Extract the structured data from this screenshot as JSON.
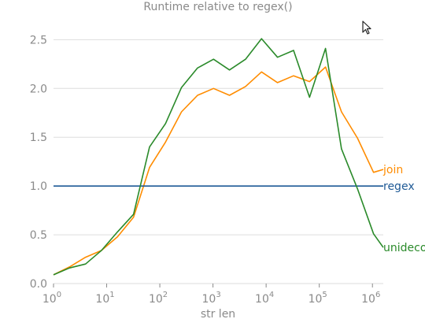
{
  "chart_data": {
    "type": "line",
    "title": "Runtime relative to regex()",
    "xlabel": "str len",
    "ylabel": "",
    "xscale": "log",
    "xlim": [
      1,
      1600000
    ],
    "ylim": [
      0,
      2.6
    ],
    "grid": "horizontal",
    "legend": "inline labels at line ends",
    "xticks": [
      {
        "value": 1,
        "base": "10",
        "exp": "0"
      },
      {
        "value": 10,
        "base": "10",
        "exp": "1"
      },
      {
        "value": 100,
        "base": "10",
        "exp": "2"
      },
      {
        "value": 1000,
        "base": "10",
        "exp": "3"
      },
      {
        "value": 10000,
        "base": "10",
        "exp": "4"
      },
      {
        "value": 100000,
        "base": "10",
        "exp": "5"
      },
      {
        "value": 1000000,
        "base": "10",
        "exp": "6"
      }
    ],
    "yticks": [
      "0.0",
      "0.5",
      "1.0",
      "1.5",
      "2.0",
      "2.5"
    ],
    "x": [
      1,
      2,
      4,
      8,
      16,
      32,
      64,
      128,
      256,
      512,
      1024,
      2048,
      4096,
      8192,
      16384,
      32768,
      65536,
      131072,
      262144,
      524288,
      1048576,
      1600000
    ],
    "series": [
      {
        "name": "join",
        "color": "#ff8c00",
        "values": [
          0.09,
          0.17,
          0.27,
          0.34,
          0.48,
          0.68,
          1.19,
          1.45,
          1.76,
          1.93,
          2.0,
          1.93,
          2.02,
          2.17,
          2.06,
          2.13,
          2.07,
          2.22,
          1.76,
          1.49,
          1.14,
          1.17
        ]
      },
      {
        "name": "regex",
        "color": "#1f5a96",
        "values": [
          1.0,
          1.0,
          1.0,
          1.0,
          1.0,
          1.0,
          1.0,
          1.0,
          1.0,
          1.0,
          1.0,
          1.0,
          1.0,
          1.0,
          1.0,
          1.0,
          1.0,
          1.0,
          1.0,
          1.0,
          1.0,
          1.0
        ]
      },
      {
        "name": "unidecode",
        "color": "#2a8a2a",
        "values": [
          0.09,
          0.16,
          0.2,
          0.34,
          0.53,
          0.71,
          1.4,
          1.64,
          2.01,
          2.21,
          2.3,
          2.19,
          2.3,
          2.51,
          2.32,
          2.39,
          1.91,
          2.41,
          1.38,
          0.97,
          0.51,
          0.37
        ]
      }
    ]
  },
  "colors": {
    "axis_text": "#8a8a8a",
    "grid": "#dddddd"
  },
  "cursor_icon": "mouse-pointer-icon"
}
